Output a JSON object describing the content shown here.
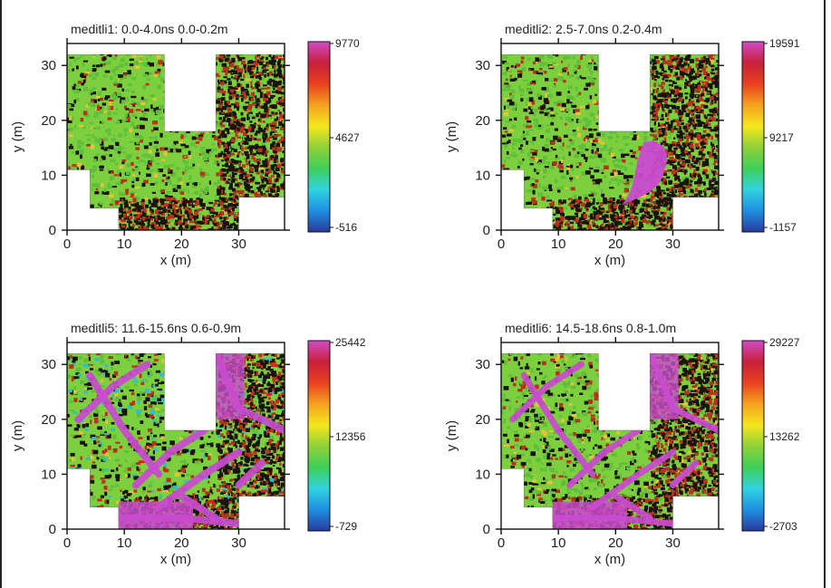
{
  "colors": {
    "colormap": [
      "#2a3a9c",
      "#1f8fe0",
      "#2fd3e0",
      "#3fcf5a",
      "#8ed13a",
      "#f5e71c",
      "#f4a31e",
      "#e94020",
      "#c8203a",
      "#d04cc8"
    ],
    "texture_dark": "#1a120e",
    "texture_green": "#7ccf3d",
    "texture_red": "#b8321c",
    "hot_zone": "#c94bd0"
  },
  "chart_data": [
    {
      "type": "heatmap",
      "name": "meditli1",
      "title": "meditli1:  0.0-4.0ns  0.0-0.2m",
      "xlabel": "x (m)",
      "ylabel": "y (m)",
      "xlim": [
        0,
        38
      ],
      "ylim": [
        0,
        34
      ],
      "x_ticks": [
        "0",
        "10",
        "20",
        "30"
      ],
      "y_ticks": [
        "0",
        "10",
        "20",
        "30"
      ],
      "colorbar": {
        "max": "9770",
        "mid": "4627",
        "min": "-516"
      },
      "hot_zone": "none"
    },
    {
      "type": "heatmap",
      "name": "meditli2",
      "title": "meditli2:  2.5-7.0ns  0.2-0.4m",
      "xlabel": "x (m)",
      "ylabel": "y (m)",
      "xlim": [
        0,
        38
      ],
      "ylim": [
        0,
        34
      ],
      "x_ticks": [
        "0",
        "10",
        "20",
        "30"
      ],
      "y_ticks": [
        "0",
        "10",
        "20",
        "30"
      ],
      "colorbar": {
        "max": "19591",
        "mid": "9217",
        "min": "-1157"
      },
      "hot_zone": "blob"
    },
    {
      "type": "heatmap",
      "name": "meditli5",
      "title": "meditli5:  11.6-15.6ns  0.6-0.9m",
      "xlabel": "x (m)",
      "ylabel": "y (m)",
      "xlim": [
        0,
        38
      ],
      "ylim": [
        0,
        34
      ],
      "x_ticks": [
        "0",
        "10",
        "20",
        "30"
      ],
      "y_ticks": [
        "0",
        "10",
        "20",
        "30"
      ],
      "colorbar": {
        "max": "25442",
        "mid": "12356",
        "min": "-729"
      },
      "hot_zone": "walls"
    },
    {
      "type": "heatmap",
      "name": "meditli6",
      "title": "meditli6:  14.5-18.6ns  0.8-1.0m",
      "xlabel": "x (m)",
      "ylabel": "y (m)",
      "xlim": [
        0,
        38
      ],
      "ylim": [
        0,
        34
      ],
      "x_ticks": [
        "0",
        "10",
        "20",
        "30"
      ],
      "y_ticks": [
        "0",
        "10",
        "20",
        "30"
      ],
      "colorbar": {
        "max": "29227",
        "mid": "13262",
        "min": "-2703"
      },
      "hot_zone": "walls"
    }
  ]
}
